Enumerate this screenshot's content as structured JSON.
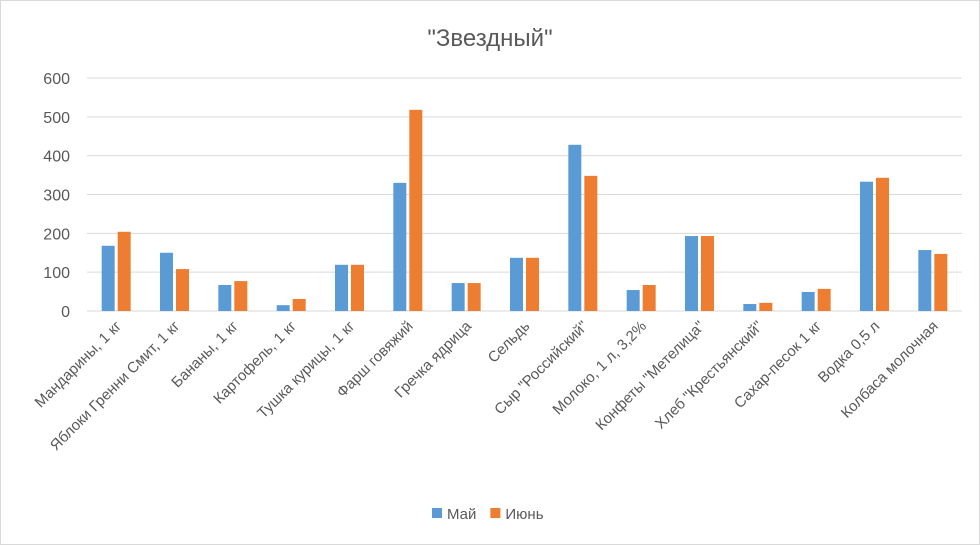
{
  "chart_data": {
    "type": "bar",
    "title": "\"Звездный\"",
    "xlabel": "",
    "ylabel": "",
    "ylim": [
      0,
      600
    ],
    "yticks": [
      0,
      100,
      200,
      300,
      400,
      500,
      600
    ],
    "grid": true,
    "legend_position": "bottom",
    "categories": [
      "Мандарины, 1 кг",
      "Яблоки Гренни Смит, 1 кг",
      "Бананы, 1 кг",
      "Картофель, 1 кг",
      "Тушка курицы, 1 кг",
      "Фарш говяжий",
      "Гречка ядрица",
      "Сельдь",
      "Сыр \"Российский\"",
      "Молоко, 1 л, 3,2%",
      "Конфеты \"Метелица\"",
      "Хлеб \"Крестьянский\"",
      "Сахар-песок 1 кг",
      "Водка 0,5 л",
      "Колбаса молочная"
    ],
    "series": [
      {
        "name": "Май",
        "color": "#5b9bd5",
        "values": [
          168,
          150,
          67,
          15,
          119,
          330,
          72,
          137,
          428,
          54,
          193,
          18,
          49,
          333,
          157
        ]
      },
      {
        "name": "Июнь",
        "color": "#ed7d31",
        "values": [
          204,
          108,
          77,
          31,
          119,
          518,
          72,
          137,
          348,
          67,
          193,
          21,
          57,
          343,
          147
        ]
      }
    ]
  }
}
